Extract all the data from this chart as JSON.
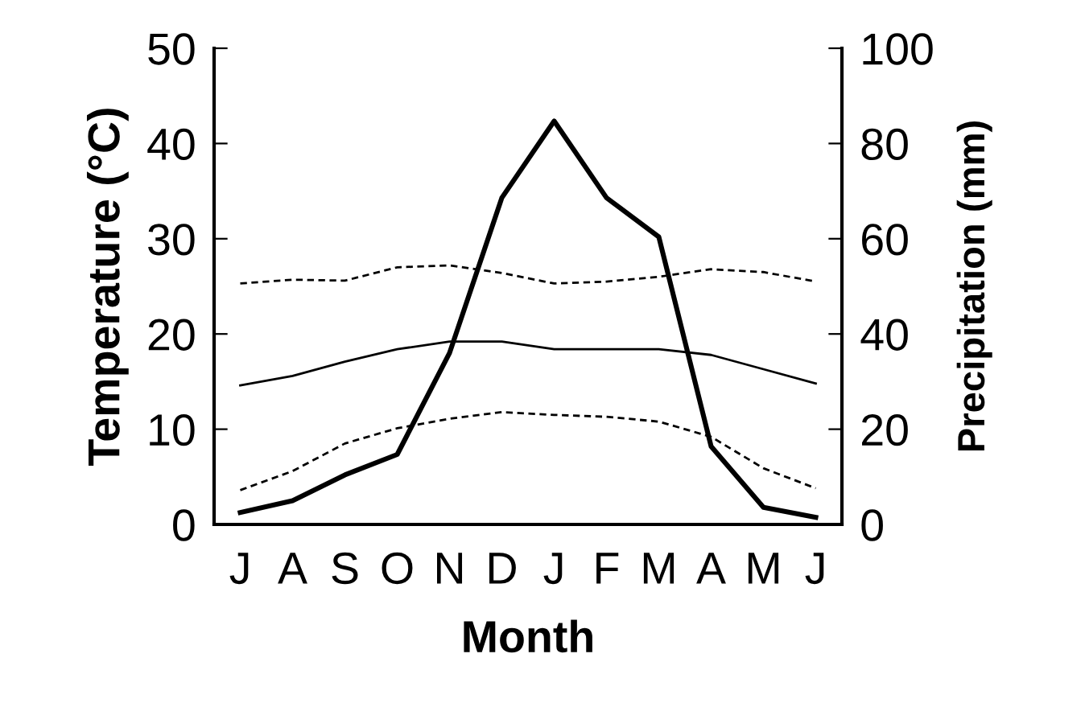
{
  "chart_data": {
    "type": "line",
    "xlabel": "Month",
    "ylabel": "Temperature (°C)",
    "y2label": "Precipitation (mm)",
    "categories": [
      "J",
      "A",
      "S",
      "O",
      "N",
      "D",
      "J",
      "F",
      "M",
      "A",
      "M",
      "J"
    ],
    "ylim": [
      0,
      50
    ],
    "yticks": [
      0,
      10,
      20,
      30,
      40,
      50
    ],
    "y2lim": [
      0,
      100
    ],
    "y2ticks": [
      0,
      20,
      40,
      60,
      80,
      100
    ],
    "grid": false,
    "legend": false,
    "marker": "none",
    "series": [
      {
        "color": "#000000",
        "line_style": "dashed",
        "values": [
          25.3,
          25.7,
          25.6,
          27.0,
          27.2,
          26.4,
          25.3,
          25.5,
          26.0,
          26.8,
          26.5,
          25.5
        ]
      },
      {
        "color": "#000000",
        "line_style": "solid",
        "values": [
          14.6,
          15.6,
          17.1,
          18.4,
          19.2,
          19.2,
          18.4,
          18.4,
          18.4,
          17.8,
          16.3,
          14.8
        ]
      },
      {
        "color": "#000000",
        "line_style": "dashed",
        "values": [
          3.6,
          5.6,
          8.5,
          10.1,
          11.1,
          11.8,
          11.5,
          11.3,
          10.8,
          9.2,
          5.9,
          3.8
        ]
      },
      {
        "color": "#000000",
        "line_style": "solid",
        "axis": "y2",
        "values": [
          2.5,
          5,
          10.4,
          14.7,
          36,
          68.6,
          84.7,
          68.6,
          60.4,
          16.4,
          3.6,
          1.5
        ]
      }
    ]
  }
}
